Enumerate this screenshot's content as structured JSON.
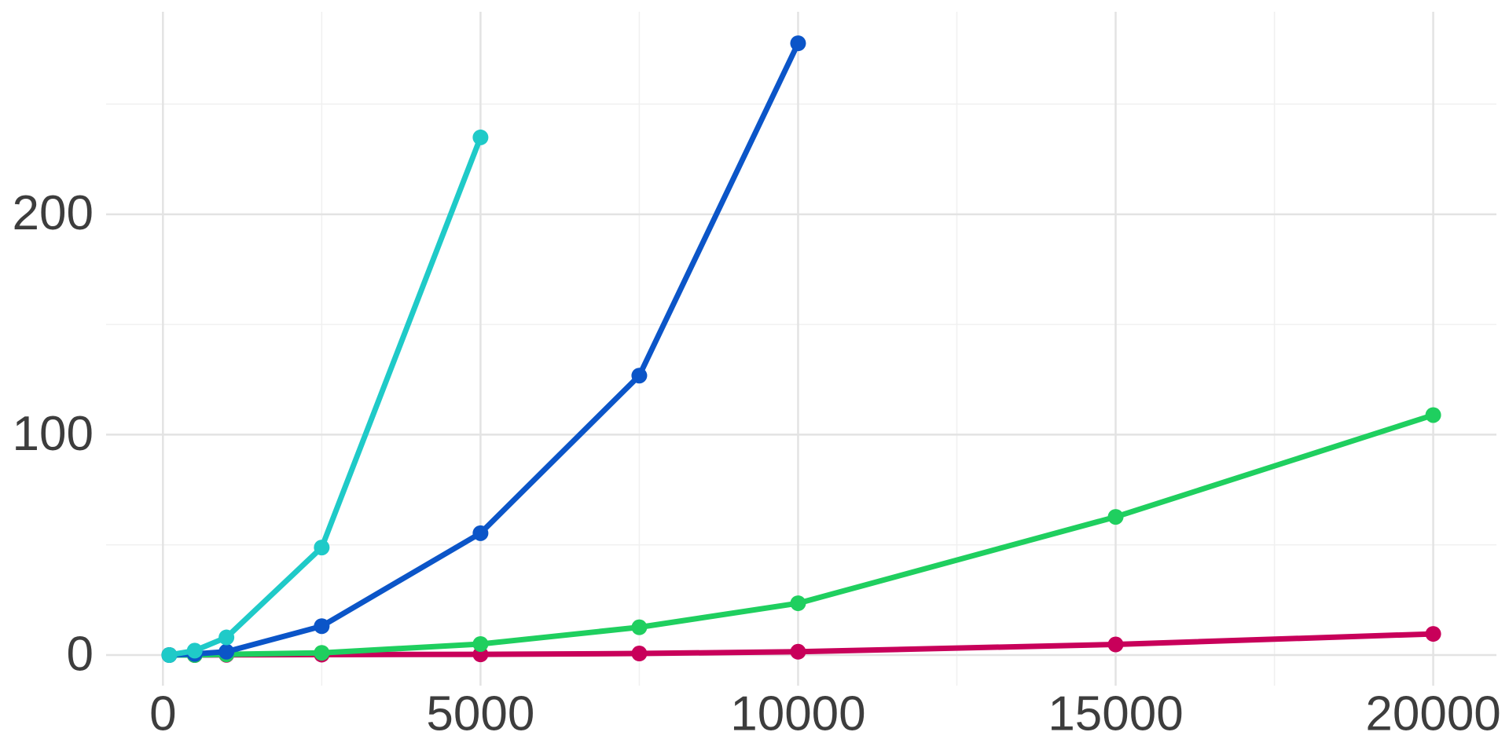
{
  "chart_data": {
    "type": "line",
    "xlim": [
      -895,
      20995
    ],
    "xticks": [
      0,
      5000,
      10000,
      15000,
      20000
    ],
    "xminorticks": [
      2500,
      7500,
      12500,
      17500
    ],
    "ylim": [
      -13.9,
      291.9
    ],
    "yticks": [
      0,
      100,
      200
    ],
    "yminorticks": [
      50,
      150,
      250
    ],
    "grid": true,
    "series": [
      {
        "color": "#c8005a",
        "x": [
          100,
          500,
          1000,
          2500,
          5000,
          7500,
          10000,
          15000,
          20000
        ],
        "values": [
          0,
          0,
          0.1,
          0.2,
          0.3,
          0.7,
          1.5,
          4.8,
          9.6
        ]
      },
      {
        "color": "#1fcf5f",
        "x": [
          100,
          500,
          1000,
          2500,
          5000,
          7500,
          10000,
          15000,
          20000
        ],
        "values": [
          0,
          0,
          0.3,
          1,
          5,
          12.6,
          23.5,
          62.7,
          108.9
        ]
      },
      {
        "color": "#0b55c8",
        "x": [
          100,
          500,
          1000,
          2500,
          5000,
          7500,
          10000
        ],
        "values": [
          0,
          0.5,
          1.5,
          13.1,
          55.3,
          126.8,
          277.6
        ]
      },
      {
        "color": "#1fcac8",
        "x": [
          100,
          500,
          1000,
          2500,
          5000
        ],
        "values": [
          0,
          2,
          8,
          48.8,
          234.9
        ]
      }
    ]
  }
}
